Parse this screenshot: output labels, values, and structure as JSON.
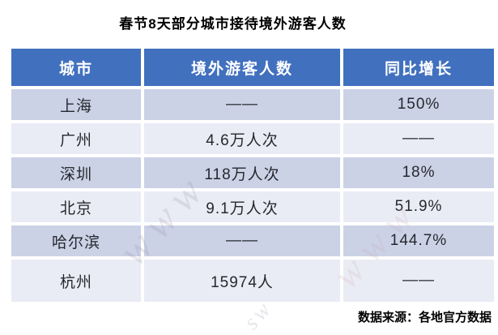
{
  "title": "春节8天部分城市接待境外游客人数",
  "table": {
    "headers": [
      "城市",
      "境外游客人数",
      "同比增长"
    ],
    "rows": [
      {
        "city": "上海",
        "visitors": "——",
        "growth": "150%"
      },
      {
        "city": "广州",
        "visitors": "4.6万人次",
        "growth": "——"
      },
      {
        "city": "深圳",
        "visitors": "118万人次",
        "growth": "18%"
      },
      {
        "city": "北京",
        "visitors": "9.1万人次",
        "growth": "51.9%"
      },
      {
        "city": "哈尔滨",
        "visitors": "——",
        "growth": "144.7%"
      },
      {
        "city": "杭州",
        "visitors": "15974人",
        "growth": "——"
      }
    ]
  },
  "footer": {
    "source": "数据来源：各地官方数据"
  },
  "watermark": {
    "text": "www",
    "text2": "sw"
  },
  "colors": {
    "header_bg": "#4170BE",
    "header_text": "#FFFFFF",
    "row_odd_bg": "#CBD2E6",
    "row_even_bg": "#E9ECF5",
    "cell_text": "#26282E",
    "title_text": "#000000"
  },
  "chart_data": {
    "type": "table",
    "title": "春节8天部分城市接待境外游客人数",
    "columns": [
      "城市",
      "境外游客人数",
      "同比增长"
    ],
    "rows": [
      [
        "上海",
        "——",
        "150%"
      ],
      [
        "广州",
        "4.6万人次",
        "——"
      ],
      [
        "深圳",
        "118万人次",
        "18%"
      ],
      [
        "北京",
        "9.1万人次",
        "51.9%"
      ],
      [
        "哈尔滨",
        "——",
        "144.7%"
      ],
      [
        "杭州",
        "15974人",
        "——"
      ]
    ],
    "source_note": "数据来源：各地官方数据",
    "layout": "header row blue (#4170BE) with white bold text; data rows alternate lavender (#CBD2E6) and pale blue (#E9ECF5); white gaps between cells; faint diagonal watermark"
  }
}
